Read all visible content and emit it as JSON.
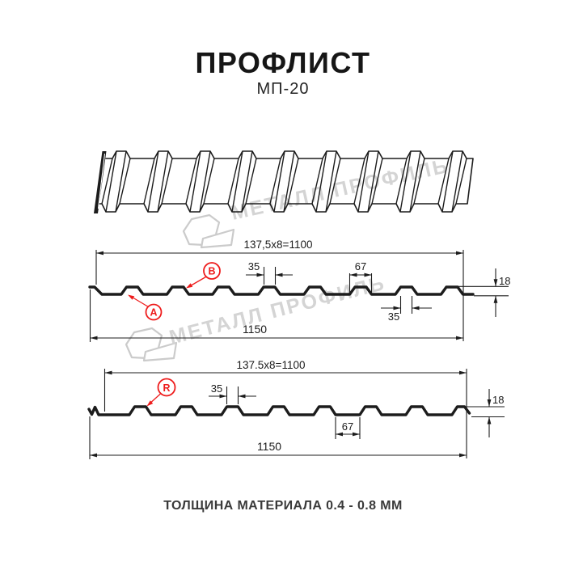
{
  "header": {
    "title": "ПРОФЛИСТ",
    "subtitle": "МП-20"
  },
  "watermark": {
    "text": "МЕТАЛЛ ПРОФИЛЬ"
  },
  "footer": {
    "caption": "ТОЛЩИНА МАТЕРИАЛА 0.4 - 0.8 ММ"
  },
  "colors": {
    "line": "#1c1c1c",
    "accent_red": "#ee1c1c",
    "watermark": "#d4d4d4"
  },
  "profile_top": {
    "working_width": "137,5x8=1100",
    "crest_width": "35",
    "base_width": "67",
    "height": "18",
    "crest_width_bottom": "35",
    "total_width": "1150",
    "label_a": "А",
    "label_b": "В"
  },
  "profile_bottom": {
    "working_width": "137.5x8=1100",
    "crest_width": "35",
    "base_width": "67",
    "height": "18",
    "total_width": "1150",
    "label_r": "R"
  }
}
